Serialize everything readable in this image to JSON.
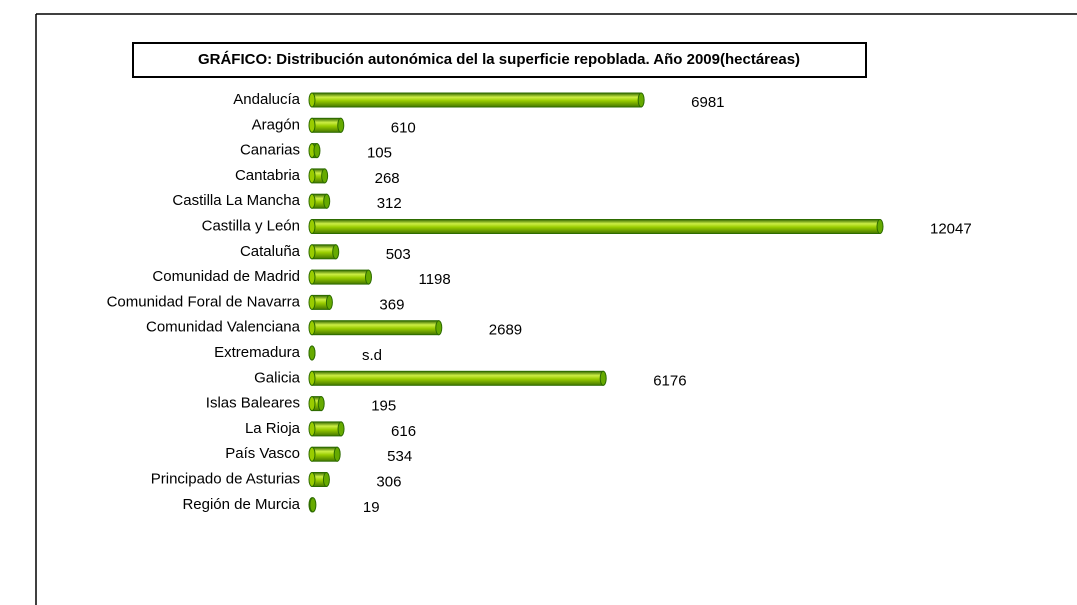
{
  "chart_data": {
    "type": "bar",
    "orientation": "horizontal",
    "title": "GRÁFICO: Distribución autonómica del la superficie repoblada. Año 2009(hectáreas)",
    "categories": [
      "Andalucía",
      "Aragón",
      "Canarias",
      "Cantabria",
      "Castilla La Mancha",
      "Castilla y León",
      "Cataluña",
      "Comunidad de Madrid",
      "Comunidad Foral de Navarra",
      "Comunidad Valenciana",
      "Extremadura",
      "Galicia",
      "Islas Baleares",
      "La Rioja",
      "País Vasco",
      "Principado de Asturias",
      "Región de Murcia"
    ],
    "values": [
      6981,
      610,
      105,
      268,
      312,
      12047,
      503,
      1198,
      369,
      2689,
      null,
      6176,
      195,
      616,
      534,
      306,
      19
    ],
    "value_labels": [
      "6981",
      "610",
      "105",
      "268",
      "312",
      "12047",
      "503",
      "1198",
      "369",
      "2689",
      "s.d",
      "6176",
      "195",
      "616",
      "534",
      "306",
      "19"
    ],
    "color": "#99cc00"
  }
}
